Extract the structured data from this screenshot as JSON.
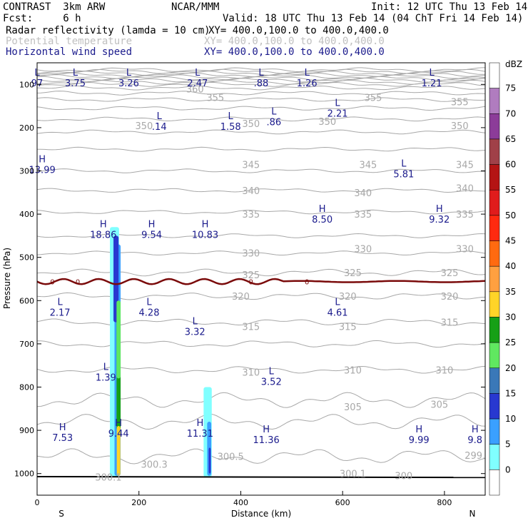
{
  "header": {
    "line1_left": "CONTRAST  3km ARW",
    "line1_mid": "NCAR/MMM",
    "line1_right": "Init: 12 UTC Thu 13 Feb 14",
    "line2_left": "Fcst:     6 h",
    "line2_right": "Valid: 18 UTC Thu 13 Feb 14 (04 ChT Fri 14 Feb 14)",
    "field1_name": "Radar reflectivity (lamda = 10 cm)",
    "field1_xy": "XY= 400.0,100.0 to 400.0,400.0",
    "field2_name": "Potential temperature",
    "field2_xy": "XY= 400.0,100.0 to 400.0,400.0",
    "field3_name": "Horizontal wind speed",
    "field3_xy": "XY= 400.0,100.0 to 400.0,400.0"
  },
  "colors": {
    "field1": "#000000",
    "field2": "#c0c0c0",
    "field3": "#1a1a8c",
    "theta": "#a8a8a8",
    "wind_label": "#1a1a8c",
    "freezing": "#7a0a0a",
    "ground": "#000000"
  },
  "chart_data": {
    "type": "cross-section",
    "xlabel": "Distance (km)",
    "ylabel": "Pressure (hPa)",
    "xlim": [
      0,
      880
    ],
    "ylim": [
      1050,
      50
    ],
    "x_ticks": [
      0,
      200,
      400,
      600,
      800
    ],
    "y_ticks": [
      100,
      200,
      300,
      400,
      500,
      600,
      700,
      800,
      900,
      1000
    ],
    "x_end_labels": {
      "left": "S",
      "right": "N"
    },
    "colorbar": {
      "unit": "dBZ",
      "labels": [
        75,
        70,
        65,
        60,
        55,
        50,
        45,
        40,
        35,
        30,
        25,
        20,
        15,
        10,
        5,
        0
      ],
      "colors": [
        "#ffffff",
        "#b07cbf",
        "#8c3c99",
        "#a04048",
        "#b41414",
        "#e01c1c",
        "#ff2a10",
        "#ff6a10",
        "#ffa040",
        "#ffd428",
        "#16a016",
        "#60e860",
        "#3a78b8",
        "#2838d0",
        "#3aa0ff",
        "#80ffff"
      ]
    },
    "theta_contour_labels": [
      {
        "text": "355",
        "x": 350,
        "p": 130
      },
      {
        "text": "360",
        "x": 310,
        "p": 110
      },
      {
        "text": "355",
        "x": 660,
        "p": 130
      },
      {
        "text": "355",
        "x": 830,
        "p": 140
      },
      {
        "text": "350",
        "x": 210,
        "p": 195
      },
      {
        "text": "350",
        "x": 420,
        "p": 190
      },
      {
        "text": "350",
        "x": 570,
        "p": 185
      },
      {
        "text": "350",
        "x": 830,
        "p": 195
      },
      {
        "text": "345",
        "x": 420,
        "p": 285
      },
      {
        "text": "345",
        "x": 650,
        "p": 285
      },
      {
        "text": "345",
        "x": 840,
        "p": 285
      },
      {
        "text": "340",
        "x": 420,
        "p": 345
      },
      {
        "text": "340",
        "x": 640,
        "p": 350
      },
      {
        "text": "340",
        "x": 840,
        "p": 340
      },
      {
        "text": "335",
        "x": 420,
        "p": 400
      },
      {
        "text": "335",
        "x": 640,
        "p": 400
      },
      {
        "text": "335",
        "x": 840,
        "p": 400
      },
      {
        "text": "330",
        "x": 420,
        "p": 490
      },
      {
        "text": "330",
        "x": 640,
        "p": 480
      },
      {
        "text": "330",
        "x": 840,
        "p": 480
      },
      {
        "text": "325",
        "x": 420,
        "p": 540
      },
      {
        "text": "325",
        "x": 620,
        "p": 535
      },
      {
        "text": "325",
        "x": 810,
        "p": 535
      },
      {
        "text": "320",
        "x": 400,
        "p": 590
      },
      {
        "text": "320",
        "x": 610,
        "p": 590
      },
      {
        "text": "320",
        "x": 810,
        "p": 590
      },
      {
        "text": "315",
        "x": 420,
        "p": 660
      },
      {
        "text": "315",
        "x": 610,
        "p": 660
      },
      {
        "text": "315",
        "x": 810,
        "p": 650
      },
      {
        "text": "310",
        "x": 420,
        "p": 765
      },
      {
        "text": "310",
        "x": 620,
        "p": 760
      },
      {
        "text": "310",
        "x": 800,
        "p": 760
      },
      {
        "text": "305",
        "x": 620,
        "p": 845
      },
      {
        "text": "305",
        "x": 790,
        "p": 840
      },
      {
        "text": "300.3",
        "x": 230,
        "p": 978
      },
      {
        "text": "300.5",
        "x": 380,
        "p": 960
      },
      {
        "text": "300.1",
        "x": 140,
        "p": 1008
      },
      {
        "text": "300.1",
        "x": 620,
        "p": 1000
      },
      {
        "text": "300",
        "x": 720,
        "p": 1005
      },
      {
        "text": "299.",
        "x": 860,
        "p": 958
      }
    ],
    "wind_extrema": [
      {
        "type": "L",
        "value": "97",
        "x": -10,
        "p": 80
      },
      {
        "type": "L",
        "value": "3.75",
        "x": 75,
        "p": 80
      },
      {
        "type": "L",
        "value": "3.26",
        "x": 180,
        "p": 80
      },
      {
        "type": "L",
        "value": "2.47",
        "x": 315,
        "p": 80
      },
      {
        "type": "L",
        "value": ".88",
        "x": 440,
        "p": 80
      },
      {
        "type": "L",
        "value": "1.26",
        "x": 530,
        "p": 80
      },
      {
        "type": "L",
        "value": "1.21",
        "x": 775,
        "p": 80
      },
      {
        "type": "L",
        "value": ".14",
        "x": 240,
        "p": 180
      },
      {
        "type": "L",
        "value": "1.58",
        "x": 380,
        "p": 180
      },
      {
        "type": "L",
        "value": ".86",
        "x": 465,
        "p": 170
      },
      {
        "type": "L",
        "value": "2.21",
        "x": 590,
        "p": 150
      },
      {
        "type": "H",
        "value": "13.99",
        "x": 10,
        "p": 280
      },
      {
        "type": "L",
        "value": "5.81",
        "x": 720,
        "p": 290
      },
      {
        "type": "H",
        "value": "18.86",
        "x": 130,
        "p": 430
      },
      {
        "type": "H",
        "value": "9.54",
        "x": 225,
        "p": 430
      },
      {
        "type": "H",
        "value": "10.83",
        "x": 330,
        "p": 430
      },
      {
        "type": "H",
        "value": "8.50",
        "x": 560,
        "p": 395
      },
      {
        "type": "H",
        "value": "9.32",
        "x": 790,
        "p": 395
      },
      {
        "type": "L",
        "value": "2.17",
        "x": 45,
        "p": 610
      },
      {
        "type": "L",
        "value": "4.28",
        "x": 220,
        "p": 610
      },
      {
        "type": "L",
        "value": "3.32",
        "x": 310,
        "p": 655
      },
      {
        "type": "L",
        "value": "4.61",
        "x": 590,
        "p": 610
      },
      {
        "type": "L",
        "value": "1.39",
        "x": 135,
        "p": 760
      },
      {
        "type": "L",
        "value": "3.52",
        "x": 460,
        "p": 770
      },
      {
        "type": "H",
        "value": "7.53",
        "x": 50,
        "p": 900
      },
      {
        "type": "H",
        "value": "9.44",
        "x": 160,
        "p": 890
      },
      {
        "type": "H",
        "value": "11.31",
        "x": 320,
        "p": 890
      },
      {
        "type": "H",
        "value": "11.36",
        "x": 450,
        "p": 905
      },
      {
        "type": "H",
        "value": "9.99",
        "x": 750,
        "p": 905
      },
      {
        "type": "H",
        "value": "9.8",
        "x": 860,
        "p": 905
      }
    ],
    "freezing_level_label": "0",
    "freezing_level_p": 556
  }
}
